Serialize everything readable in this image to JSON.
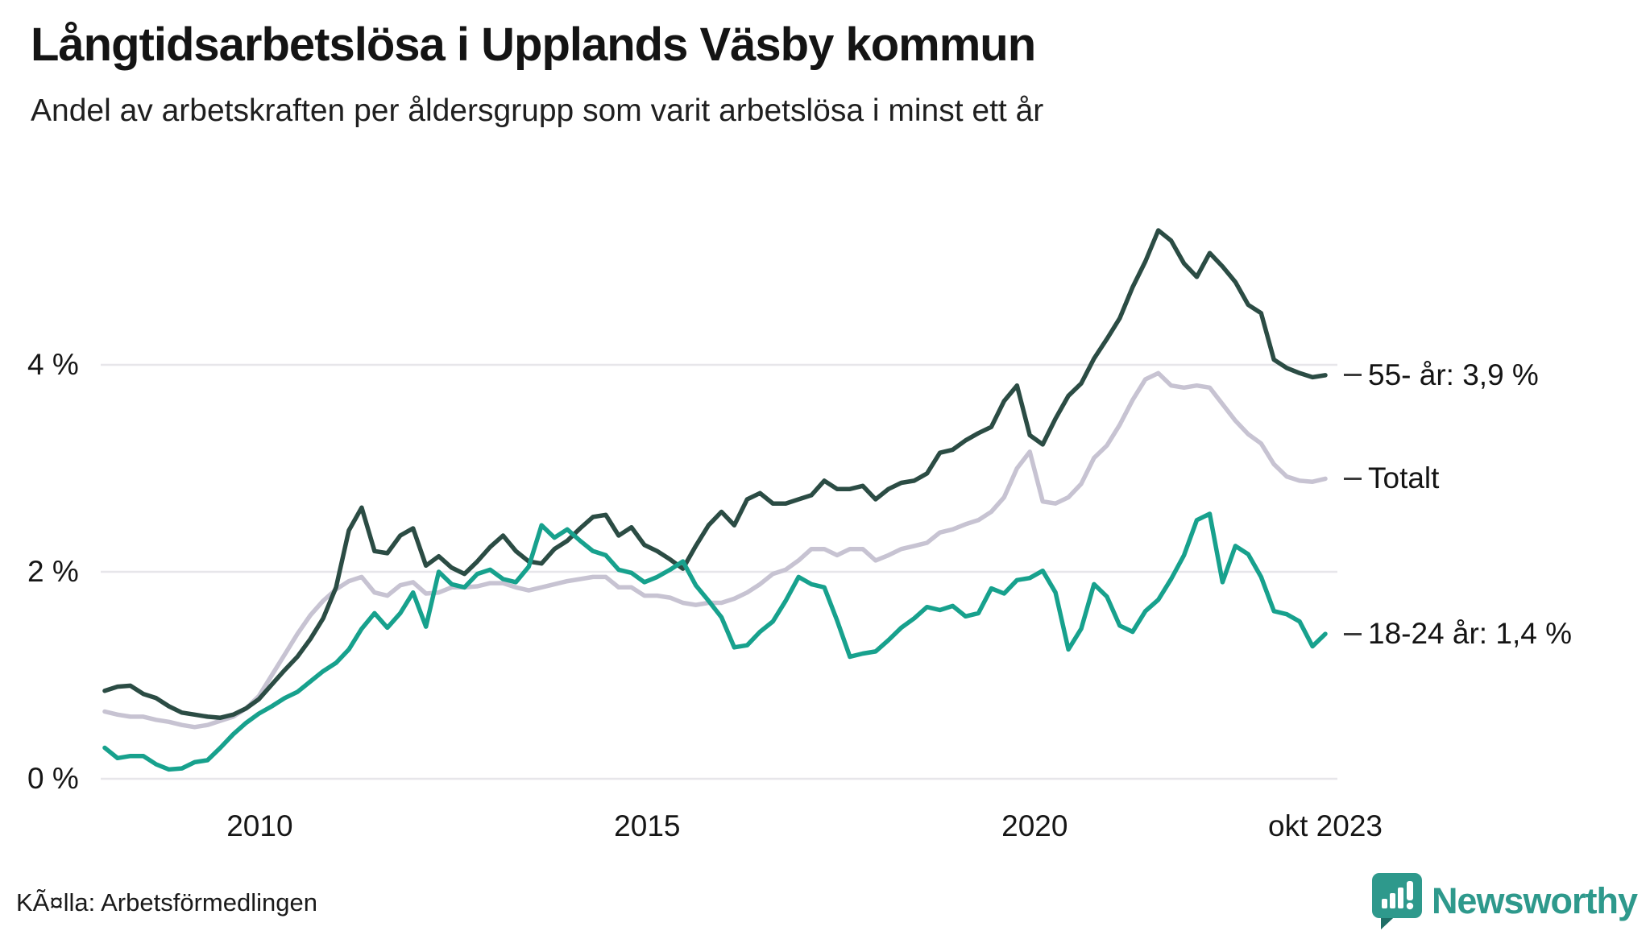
{
  "header": {
    "title": "Långtidsarbetslösa i Upplands Väsby kommun",
    "subtitle": "Andel av arbetskraften per åldersgrupp som varit arbetslösa i minst ett år"
  },
  "footer": {
    "source": "KÃ¤lla: Arbetsförmedlingen",
    "brand": "Newsworthy"
  },
  "colors": {
    "age55": "#2b4c44",
    "total": "#c7c3d2",
    "age1824": "#17a18d",
    "grid": "#e7e6ea",
    "tick_dash": "#3c3c3c",
    "brand": "#2e998c",
    "brand_dark": "#1f6e66"
  },
  "chart_data": {
    "type": "line",
    "title": "Långtidsarbetslösa i Upplands Väsby kommun",
    "subtitle": "Andel av arbetskraften per åldersgrupp som varit arbetslösa i minst ett år",
    "unit": "%",
    "x_start": "2008-01",
    "x_end": "2023-10",
    "x_total_months": 189,
    "points_per_series": 96,
    "grid": "horizontal",
    "legend_position": "right-end-labels",
    "ylim": [
      0,
      5.6
    ],
    "y_ticks": [
      {
        "value": 0,
        "label": "0 %"
      },
      {
        "value": 2,
        "label": "2 %"
      },
      {
        "value": 4,
        "label": "4 %"
      }
    ],
    "x_ticks": [
      {
        "month": 24,
        "label": "2010"
      },
      {
        "month": 84,
        "label": "2015"
      },
      {
        "month": 144,
        "label": "2020"
      },
      {
        "month": 189,
        "label": "okt 2023"
      }
    ],
    "series": [
      {
        "id": "age55",
        "name": "55- år",
        "end_label": "55- år: 3,9 %",
        "last_value": 3.9,
        "color": "#2b4c44",
        "values": [
          0.85,
          0.89,
          0.9,
          0.82,
          0.78,
          0.7,
          0.64,
          0.62,
          0.6,
          0.59,
          0.62,
          0.68,
          0.77,
          0.91,
          1.05,
          1.18,
          1.35,
          1.55,
          1.85,
          2.4,
          2.62,
          2.2,
          2.18,
          2.35,
          2.42,
          2.06,
          2.15,
          2.04,
          1.98,
          2.1,
          2.24,
          2.35,
          2.2,
          2.1,
          2.08,
          2.22,
          2.3,
          2.42,
          2.53,
          2.55,
          2.35,
          2.43,
          2.26,
          2.2,
          2.12,
          2.03,
          2.25,
          2.45,
          2.58,
          2.45,
          2.7,
          2.76,
          2.66,
          2.66,
          2.7,
          2.74,
          2.88,
          2.8,
          2.8,
          2.83,
          2.7,
          2.8,
          2.86,
          2.88,
          2.95,
          3.15,
          3.18,
          3.27,
          3.34,
          3.4,
          3.65,
          3.8,
          3.32,
          3.23,
          3.48,
          3.7,
          3.82,
          4.06,
          4.25,
          4.45,
          4.75,
          5.0,
          5.3,
          5.2,
          4.98,
          4.85,
          5.08,
          4.95,
          4.8,
          4.58,
          4.5,
          4.05,
          3.97,
          3.92,
          3.88,
          3.9
        ]
      },
      {
        "id": "total",
        "name": "Totalt",
        "end_label": "Totalt",
        "last_value": 2.9,
        "color": "#c7c3d2",
        "values": [
          0.65,
          0.62,
          0.6,
          0.6,
          0.57,
          0.55,
          0.52,
          0.5,
          0.52,
          0.56,
          0.6,
          0.68,
          0.8,
          1.0,
          1.2,
          1.4,
          1.58,
          1.72,
          1.83,
          1.91,
          1.95,
          1.8,
          1.77,
          1.87,
          1.9,
          1.79,
          1.8,
          1.85,
          1.85,
          1.86,
          1.89,
          1.89,
          1.85,
          1.82,
          1.85,
          1.88,
          1.91,
          1.93,
          1.95,
          1.95,
          1.85,
          1.85,
          1.77,
          1.77,
          1.75,
          1.7,
          1.68,
          1.7,
          1.7,
          1.74,
          1.8,
          1.88,
          1.98,
          2.02,
          2.11,
          2.22,
          2.22,
          2.16,
          2.22,
          2.22,
          2.11,
          2.16,
          2.22,
          2.25,
          2.28,
          2.38,
          2.41,
          2.46,
          2.5,
          2.58,
          2.72,
          3.0,
          3.16,
          2.68,
          2.66,
          2.72,
          2.85,
          3.1,
          3.22,
          3.42,
          3.66,
          3.86,
          3.92,
          3.8,
          3.78,
          3.8,
          3.78,
          3.62,
          3.46,
          3.33,
          3.24,
          3.04,
          2.92,
          2.88,
          2.87,
          2.9
        ]
      },
      {
        "id": "age1824",
        "name": "18-24 år",
        "end_label": "18-24 år: 1,4 %",
        "last_value": 1.4,
        "color": "#17a18d",
        "values": [
          0.3,
          0.2,
          0.22,
          0.22,
          0.14,
          0.09,
          0.1,
          0.16,
          0.18,
          0.3,
          0.43,
          0.54,
          0.63,
          0.7,
          0.78,
          0.84,
          0.94,
          1.04,
          1.12,
          1.25,
          1.45,
          1.6,
          1.46,
          1.6,
          1.8,
          1.47,
          2.0,
          1.88,
          1.85,
          1.98,
          2.02,
          1.93,
          1.9,
          2.05,
          2.45,
          2.33,
          2.41,
          2.3,
          2.2,
          2.16,
          2.02,
          1.99,
          1.9,
          1.95,
          2.02,
          2.1,
          1.87,
          1.72,
          1.56,
          1.27,
          1.29,
          1.42,
          1.52,
          1.72,
          1.95,
          1.88,
          1.85,
          1.53,
          1.18,
          1.21,
          1.23,
          1.34,
          1.46,
          1.55,
          1.66,
          1.63,
          1.67,
          1.57,
          1.6,
          1.84,
          1.79,
          1.92,
          1.94,
          2.01,
          1.8,
          1.25,
          1.45,
          1.88,
          1.76,
          1.48,
          1.42,
          1.62,
          1.73,
          1.93,
          2.16,
          2.5,
          2.56,
          1.9,
          2.25,
          2.17,
          1.95,
          1.62,
          1.59,
          1.52,
          1.28,
          1.4
        ]
      }
    ]
  }
}
